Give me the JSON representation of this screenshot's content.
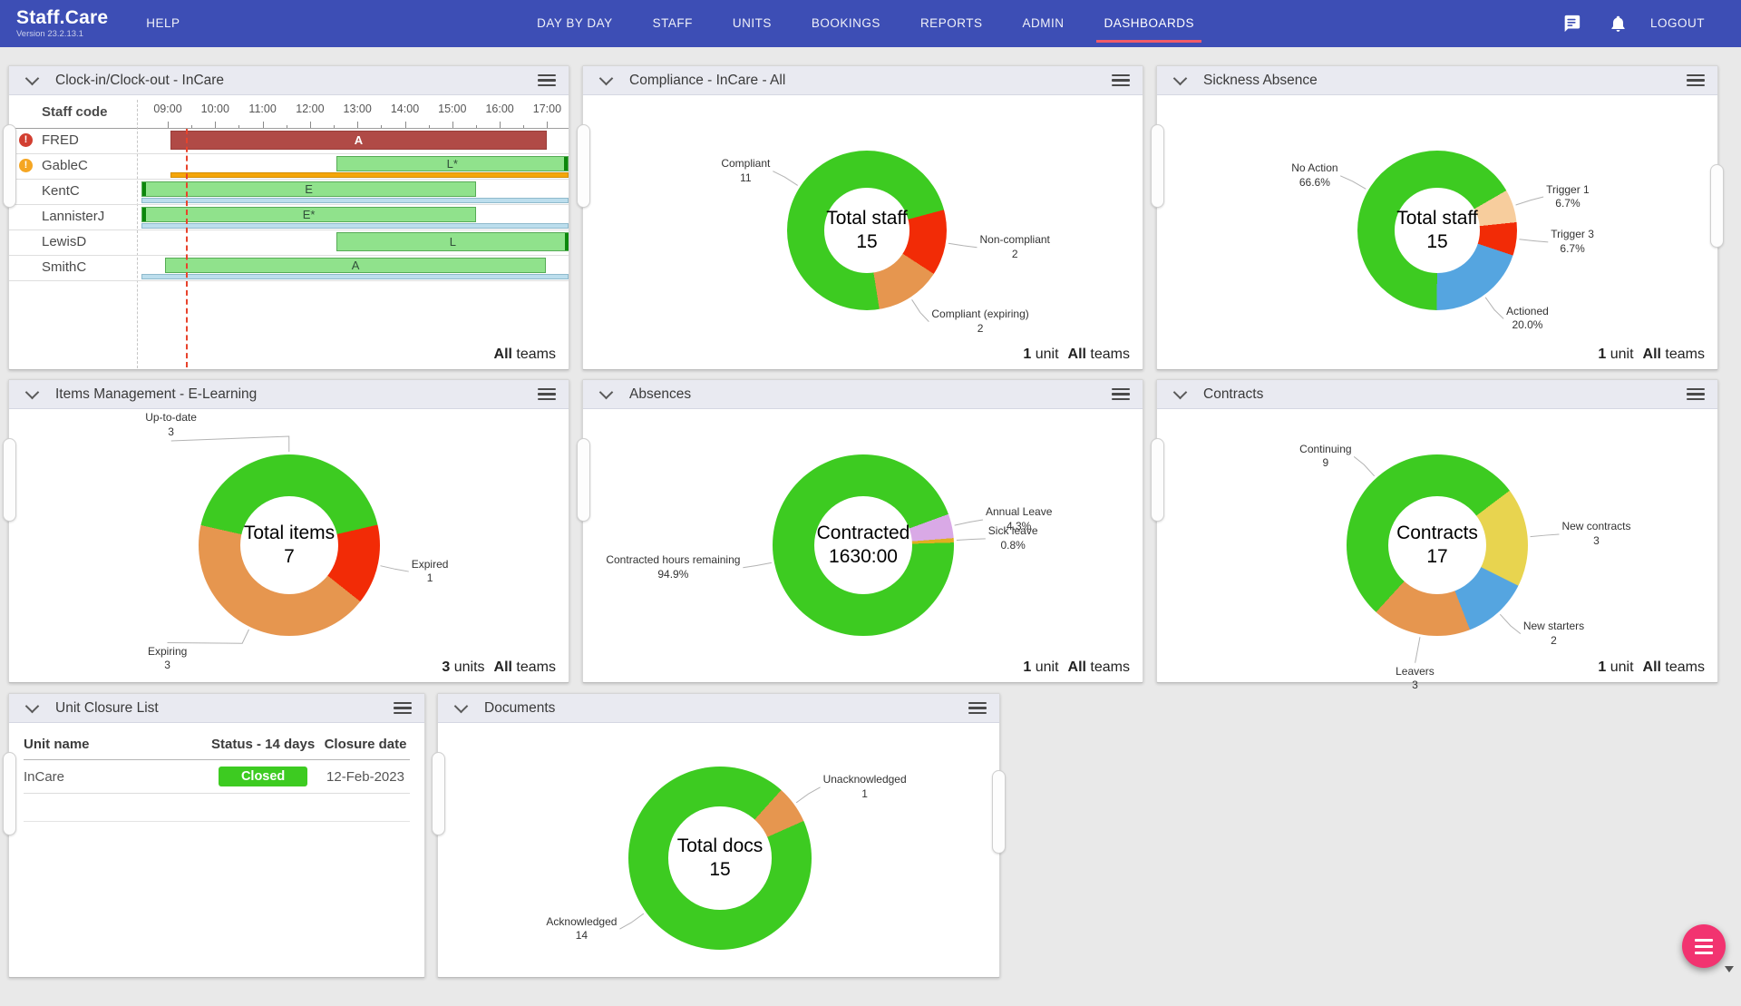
{
  "nav": {
    "logo": "Staff.Care",
    "version": "Version 23.2.13.1",
    "help": "HELP",
    "items": [
      {
        "label": "DAY BY DAY",
        "active": false
      },
      {
        "label": "STAFF",
        "active": false
      },
      {
        "label": "UNITS",
        "active": false
      },
      {
        "label": "BOOKINGS",
        "active": false
      },
      {
        "label": "REPORTS",
        "active": false
      },
      {
        "label": "ADMIN",
        "active": false
      },
      {
        "label": "DASHBOARDS",
        "active": true
      }
    ],
    "icons": [
      "chat-icon",
      "bell-icon"
    ],
    "logout": "LOGOUT",
    "accent": "#f15b68"
  },
  "fab": {
    "color": "#f23370",
    "icon": "menu-icon"
  },
  "widgets": {
    "clock": {
      "title": "Clock-in/Clock-out - InCare",
      "staff_col_header": "Staff code",
      "axis_hours": [
        "09:00",
        "10:00",
        "11:00",
        "12:00",
        "13:00",
        "14:00",
        "15:00",
        "16:00",
        "17:00"
      ],
      "now_hour": 9.38,
      "colors": {
        "red": "#b04a46",
        "green": "#90e28c",
        "orange": "#f5a609",
        "blue": "#bcdeed"
      },
      "alert_colors": {
        "error": "#d23f31",
        "warning": "#f5a623"
      },
      "rows": [
        {
          "name": "FRED",
          "alert": "error",
          "bar": {
            "label": "A",
            "start": 9.05,
            "end": 17.0,
            "type": "red"
          },
          "sub": null
        },
        {
          "name": "GableC",
          "alert": "warning",
          "bar": {
            "label": "L*",
            "start": 12.55,
            "end": 17.45,
            "type": "green",
            "edge": "right"
          },
          "sub": {
            "type": "orange",
            "start": 9.05,
            "end": 17.45
          }
        },
        {
          "name": "KentC",
          "alert": null,
          "bar": {
            "label": "E",
            "start": 8.45,
            "end": 15.5,
            "type": "green",
            "edge": "left"
          },
          "sub": {
            "type": "blue",
            "start": 8.45,
            "end": 17.45
          }
        },
        {
          "name": "LannisterJ",
          "alert": null,
          "bar": {
            "label": "E*",
            "start": 8.45,
            "end": 15.5,
            "type": "green",
            "edge": "left"
          },
          "sub": {
            "type": "blue",
            "start": 8.45,
            "end": 17.45
          }
        },
        {
          "name": "LewisD",
          "alert": null,
          "bar": {
            "label": "L",
            "start": 12.55,
            "end": 17.47,
            "type": "green",
            "edge": "right"
          },
          "sub": null
        },
        {
          "name": "SmithC",
          "alert": null,
          "bar": {
            "label": "A",
            "start": 8.95,
            "end": 16.97,
            "type": "green"
          },
          "sub": {
            "type": "blue",
            "start": 8.45,
            "end": 17.45
          }
        }
      ],
      "footer": {
        "team_count": "All",
        "team_label": "teams"
      }
    },
    "compliance": {
      "title": "Compliance - InCare - All",
      "center": [
        "Total staff",
        "15"
      ],
      "start_angle": 75,
      "segments": [
        {
          "label": "Non-compliant",
          "value": "2",
          "color": "#f22b06",
          "frac": 0.1333
        },
        {
          "label": "Compliant (expiring)",
          "value": "2",
          "color": "#e6964f",
          "frac": 0.1333
        },
        {
          "label": "Compliant",
          "value": "11",
          "color": "#3dcb21",
          "frac": 0.7334
        }
      ],
      "footer": {
        "unit_count": "1",
        "unit_label": "unit",
        "team_count": "All",
        "team_label": "teams"
      }
    },
    "sickness": {
      "title": "Sickness Absence",
      "center": [
        "Total staff",
        "15"
      ],
      "start_angle": 60,
      "segments": [
        {
          "label": "Trigger 1",
          "value": "6.7%",
          "color": "#f7cd9d",
          "frac": 0.067
        },
        {
          "label": "Trigger 3",
          "value": "6.7%",
          "color": "#f22b06",
          "frac": 0.067
        },
        {
          "label": "Actioned",
          "value": "20.0%",
          "color": "#55a5e0",
          "frac": 0.2
        },
        {
          "label": "No Action",
          "value": "66.6%",
          "color": "#3dcb21",
          "frac": 0.666
        }
      ],
      "footer": {
        "unit_count": "1",
        "unit_label": "unit",
        "team_count": "All",
        "team_label": "teams"
      }
    },
    "items": {
      "title": "Items Management - E-Learning",
      "center": [
        "Total items",
        "7"
      ],
      "start_angle": 77,
      "segments": [
        {
          "label": "Expired",
          "value": "1",
          "color": "#f22b06",
          "frac": 0.1429
        },
        {
          "label": "Expiring",
          "value": "3",
          "color": "#e6964f",
          "frac": 0.4286,
          "nudge": [
            -50,
            6
          ]
        },
        {
          "label": "Up-to-date",
          "value": "3",
          "color": "#3dcb21",
          "frac": 0.4285,
          "nudge": [
            -130,
            2
          ]
        }
      ],
      "footer": {
        "unit_count": "3",
        "unit_label": "units",
        "team_count": "All",
        "team_label": "teams"
      }
    },
    "absences": {
      "title": "Absences",
      "center": [
        "Contracted",
        "1630:00"
      ],
      "start_angle": 70,
      "segments": [
        {
          "label": "Annual Leave",
          "value": "4.3%",
          "color": "#d9a9e6",
          "frac": 0.043
        },
        {
          "label": "Sick leave",
          "value": "0.8%",
          "color": "#dfaf1f",
          "frac": 0.008
        },
        {
          "label": "Contracted hours remaining",
          "value": "94.9%",
          "color": "#3dcb21",
          "frac": 0.949
        }
      ],
      "footer": {
        "unit_count": "1",
        "unit_label": "unit",
        "team_count": "All",
        "team_label": "teams"
      }
    },
    "contracts": {
      "title": "Contracts",
      "center": [
        "Contracts",
        "17"
      ],
      "start_angle": 53,
      "segments": [
        {
          "label": "New contracts",
          "value": "3",
          "color": "#e8d44f",
          "frac": 0.1765
        },
        {
          "label": "New starters",
          "value": "2",
          "color": "#55a5e0",
          "frac": 0.1176
        },
        {
          "label": "Leavers",
          "value": "3",
          "color": "#e6964f",
          "frac": 0.1765
        },
        {
          "label": "Continuing",
          "value": "9",
          "color": "#3dcb21",
          "frac": 0.5294
        }
      ],
      "footer": {
        "unit_count": "1",
        "unit_label": "unit",
        "team_count": "All",
        "team_label": "teams"
      }
    },
    "closures": {
      "title": "Unit Closure List",
      "headers": [
        "Unit name",
        "Status - 14 days",
        "Closure date"
      ],
      "status_color": "#3dcb21",
      "rows": [
        {
          "unit": "InCare",
          "status": "Closed",
          "date": "12-Feb-2023"
        }
      ]
    },
    "documents": {
      "title": "Documents",
      "center": [
        "Total docs",
        "15"
      ],
      "start_angle": 42,
      "segments": [
        {
          "label": "Unacknowledged",
          "value": "1",
          "color": "#e6964f",
          "frac": 0.0667
        },
        {
          "label": "Acknowledged",
          "value": "14",
          "color": "#3dcb21",
          "frac": 0.9333
        }
      ]
    }
  },
  "chart_data": [
    {
      "type": "gantt",
      "title": "Clock-in/Clock-out - InCare",
      "x_axis": [
        "09:00",
        "10:00",
        "11:00",
        "12:00",
        "13:00",
        "14:00",
        "15:00",
        "16:00",
        "17:00"
      ],
      "rows": [
        {
          "staff": "FRED",
          "code": "A",
          "start_hour": 9.05,
          "end_hour": 17.0,
          "alert": "red"
        },
        {
          "staff": "GableC",
          "code": "L*",
          "start_hour": 12.55,
          "end_hour": 17.45,
          "alert": "amber",
          "underbar": "orange 9.05-17.45"
        },
        {
          "staff": "KentC",
          "code": "E",
          "start_hour": 8.45,
          "end_hour": 15.5,
          "underbar": "blue 8.45-17.45"
        },
        {
          "staff": "LannisterJ",
          "code": "E*",
          "start_hour": 8.45,
          "end_hour": 15.5,
          "underbar": "blue 8.45-17.45"
        },
        {
          "staff": "LewisD",
          "code": "L",
          "start_hour": 12.55,
          "end_hour": 17.47
        },
        {
          "staff": "SmithC",
          "code": "A",
          "start_hour": 8.95,
          "end_hour": 16.97,
          "underbar": "blue 8.45-17.45"
        }
      ]
    },
    {
      "type": "pie",
      "title": "Compliance - InCare - All",
      "center_label": "Total staff 15",
      "categories": [
        "Compliant",
        "Non-compliant",
        "Compliant (expiring)"
      ],
      "values": [
        11,
        2,
        2
      ]
    },
    {
      "type": "pie",
      "title": "Sickness Absence",
      "center_label": "Total staff 15",
      "categories": [
        "No Action",
        "Trigger 1",
        "Trigger 3",
        "Actioned"
      ],
      "values": [
        "66.6%",
        "6.7%",
        "6.7%",
        "20.0%"
      ]
    },
    {
      "type": "pie",
      "title": "Items Management - E-Learning",
      "center_label": "Total items 7",
      "categories": [
        "Up-to-date",
        "Expired",
        "Expiring"
      ],
      "values": [
        3,
        1,
        3
      ]
    },
    {
      "type": "pie",
      "title": "Absences",
      "center_label": "Contracted 1630:00",
      "categories": [
        "Annual Leave",
        "Sick leave",
        "Contracted hours remaining"
      ],
      "values": [
        "4.3%",
        "0.8%",
        "94.9%"
      ]
    },
    {
      "type": "pie",
      "title": "Contracts",
      "center_label": "Contracts 17",
      "categories": [
        "Continuing",
        "New contracts",
        "New starters",
        "Leavers"
      ],
      "values": [
        9,
        3,
        2,
        3
      ]
    },
    {
      "type": "table",
      "title": "Unit Closure List",
      "columns": [
        "Unit name",
        "Status - 14 days",
        "Closure date"
      ],
      "rows": [
        [
          "InCare",
          "Closed",
          "12-Feb-2023"
        ]
      ]
    },
    {
      "type": "pie",
      "title": "Documents",
      "center_label": "Total docs 15",
      "categories": [
        "Acknowledged",
        "Unacknowledged"
      ],
      "values": [
        14,
        1
      ]
    }
  ]
}
